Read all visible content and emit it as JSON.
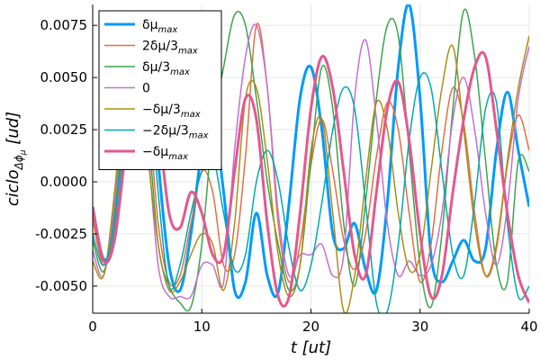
{
  "chart_data": {
    "type": "line",
    "xlabel": "t [ut]",
    "ylabel": "ciclo_Δϕμ [ud]",
    "xlim": [
      0,
      40
    ],
    "ylim": [
      -0.0063,
      0.0085
    ],
    "x_ticks": [
      0,
      10,
      20,
      30,
      40
    ],
    "x_tick_labels": [
      "0",
      "10",
      "20",
      "30",
      "40"
    ],
    "y_ticks": [
      -0.005,
      -0.0025,
      0.0,
      0.0025,
      0.005,
      0.0075
    ],
    "y_tick_labels": [
      "-0.0050",
      "-0.0025",
      "0.0000",
      "0.0025",
      "0.0050",
      "0.0075"
    ],
    "grid": true,
    "legend_position": "top-left",
    "series": [
      {
        "name": "δμmax",
        "color": "#009AFA",
        "width": 3,
        "x": [
          0,
          1,
          2,
          3,
          4,
          5,
          6,
          7,
          8,
          9,
          10,
          11,
          12,
          13,
          14,
          15,
          16,
          17,
          18,
          19,
          20,
          21,
          22,
          23,
          24,
          25,
          26,
          27,
          28,
          29,
          30,
          31,
          32,
          33,
          34,
          35,
          36,
          37,
          38,
          39,
          40
        ],
        "y": [
          -0.0012,
          -0.0037,
          -0.0025,
          0.002,
          0.0068,
          0.0072,
          0.001,
          -0.004,
          -0.0052,
          -0.0025,
          0.0015,
          0.0032,
          -0.0005,
          -0.0052,
          -0.0048,
          -0.0015,
          -0.0045,
          -0.0053,
          -0.001,
          0.004,
          0.0055,
          0.0025,
          -0.0025,
          -0.0032,
          -0.002,
          -0.0042,
          -0.0052,
          -0.001,
          0.0055,
          0.0085,
          0.004,
          -0.0035,
          -0.0048,
          -0.0038,
          -0.0028,
          -0.0038,
          -0.0032,
          0.0015,
          0.0043,
          0.0015,
          -0.0012
        ]
      },
      {
        "name": "2δμ/3max",
        "color": "#E26F46",
        "width": 1.5,
        "x": [
          0,
          1,
          2,
          3,
          4,
          5,
          6,
          7,
          8,
          9,
          10,
          11,
          12,
          13,
          14,
          15,
          16,
          17,
          18,
          19,
          20,
          21,
          22,
          23,
          24,
          25,
          26,
          27,
          28,
          29,
          30,
          31,
          32,
          33,
          34,
          35,
          36,
          37,
          38,
          39,
          40
        ],
        "y": [
          -0.0018,
          -0.004,
          -0.002,
          0.003,
          0.007,
          0.004,
          -0.002,
          -0.0048,
          -0.0045,
          -0.002,
          0.0005,
          -0.0005,
          -0.004,
          -0.0035,
          0.0012,
          0.0075,
          0.0045,
          -0.002,
          -0.0048,
          -0.003,
          0.0008,
          0.003,
          0.0005,
          -0.0028,
          -0.0042,
          -0.0025,
          0.0012,
          0.0038,
          0.0025,
          -0.0015,
          -0.0048,
          -0.003,
          0.0015,
          0.0045,
          0.0028,
          -0.0015,
          -0.0045,
          -0.0032,
          0.0008,
          0.0032,
          0.0015
        ]
      },
      {
        "name": "δμ/3max",
        "color": "#3DA44D",
        "width": 1.5,
        "x": [
          0,
          1,
          2,
          3,
          4,
          5,
          6,
          7,
          8,
          9,
          10,
          11,
          12,
          13,
          14,
          15,
          16,
          17,
          18,
          19,
          20,
          21,
          22,
          23,
          24,
          25,
          26,
          27,
          28,
          29,
          30,
          31,
          32,
          33,
          34,
          35,
          36,
          37,
          38,
          39,
          40
        ],
        "y": [
          -0.0028,
          -0.0043,
          -0.0015,
          0.004,
          0.0072,
          0.003,
          -0.003,
          -0.005,
          -0.0058,
          -0.006,
          -0.003,
          0.0025,
          0.0055,
          0.008,
          0.0075,
          0.004,
          0.0,
          -0.003,
          -0.0052,
          -0.004,
          0.001,
          0.0055,
          0.0035,
          -0.002,
          -0.005,
          -0.001,
          0.004,
          0.0075,
          0.007,
          0.0015,
          -0.004,
          -0.006,
          -0.0025,
          0.0035,
          0.0082,
          0.006,
          0.001,
          -0.004,
          -0.0048,
          0.001,
          0.0005
        ]
      },
      {
        "name": "0",
        "color": "#C271D2",
        "width": 1.5,
        "x": [
          0,
          1,
          2,
          3,
          4,
          5,
          6,
          7,
          8,
          9,
          10,
          11,
          12,
          13,
          14,
          15,
          16,
          17,
          18,
          19,
          20,
          21,
          22,
          23,
          24,
          25,
          26,
          27,
          28,
          29,
          30,
          31,
          32,
          33,
          34,
          35,
          36,
          37,
          38,
          39,
          40
        ],
        "y": [
          -0.0033,
          -0.0045,
          -0.001,
          0.0048,
          0.007,
          0.002,
          -0.004,
          -0.0055,
          -0.0055,
          -0.0055,
          -0.004,
          -0.004,
          -0.0048,
          0.0015,
          0.006,
          0.0075,
          0.0045,
          -0.0015,
          -0.0045,
          -0.0035,
          -0.0035,
          -0.003,
          -0.0045,
          -0.0035,
          0.004,
          0.0068,
          0.003,
          -0.002,
          -0.0045,
          -0.0038,
          -0.0045,
          -0.004,
          -0.0015,
          0.003,
          0.005,
          0.0025,
          -0.0015,
          -0.004,
          -0.0012,
          0.004,
          0.0065
        ]
      },
      {
        "name": "−δμ/3max",
        "color": "#AC8D18",
        "width": 1.5,
        "x": [
          0,
          1,
          2,
          3,
          4,
          5,
          6,
          7,
          8,
          9,
          10,
          11,
          12,
          13,
          14,
          15,
          16,
          17,
          18,
          19,
          20,
          21,
          22,
          23,
          24,
          25,
          26,
          27,
          28,
          29,
          30,
          31,
          32,
          33,
          34,
          35,
          36,
          37,
          38,
          39,
          40
        ],
        "y": [
          -0.0038,
          -0.0045,
          -0.0005,
          0.005,
          0.0068,
          0.0015,
          -0.003,
          -0.0052,
          -0.0048,
          -0.0035,
          -0.0025,
          -0.003,
          -0.0052,
          -0.002,
          0.004,
          0.0045,
          0.001,
          -0.0035,
          -0.0055,
          -0.004,
          0.0015,
          0.003,
          -0.0015,
          -0.0062,
          -0.0045,
          0.0,
          0.0038,
          0.0025,
          -0.0015,
          -0.0042,
          -0.0035,
          0.0005,
          0.0045,
          0.0065,
          0.0025,
          -0.002,
          -0.0045,
          -0.003,
          0.001,
          0.0045,
          0.007
        ]
      },
      {
        "name": "−2δμ/3max",
        "color": "#00A9AD",
        "width": 1.5,
        "x": [
          0,
          1,
          2,
          3,
          4,
          5,
          6,
          7,
          8,
          9,
          10,
          11,
          12,
          13,
          14,
          15,
          16,
          17,
          18,
          19,
          20,
          21,
          22,
          23,
          24,
          25,
          26,
          27,
          28,
          29,
          30,
          31,
          32,
          33,
          34,
          35,
          36,
          37,
          38,
          39,
          40
        ],
        "y": [
          -0.0025,
          -0.004,
          -0.0018,
          0.0035,
          0.0078,
          0.006,
          -0.0005,
          -0.005,
          -0.004,
          -0.0015,
          0.0005,
          0.0012,
          -0.0015,
          -0.0042,
          -0.0035,
          0.0,
          0.0015,
          0.0,
          -0.0032,
          -0.0052,
          -0.004,
          -0.001,
          0.0025,
          0.0045,
          0.0035,
          -0.001,
          -0.0058,
          -0.0062,
          -0.003,
          0.002,
          0.005,
          0.0045,
          0.0005,
          -0.0035,
          -0.0045,
          -0.001,
          0.0035,
          0.0038,
          -0.002,
          -0.0055,
          -0.005
        ]
      },
      {
        "name": "−δμmax",
        "color": "#E4588E",
        "width": 3,
        "x": [
          0,
          1,
          2,
          3,
          4,
          5,
          6,
          7,
          8,
          9,
          10,
          11,
          12,
          13,
          14,
          15,
          16,
          17,
          18,
          19,
          20,
          21,
          22,
          23,
          24,
          25,
          26,
          27,
          28,
          29,
          30,
          31,
          32,
          33,
          34,
          35,
          36,
          37,
          38,
          39,
          40
        ],
        "y": [
          -0.0012,
          -0.0038,
          -0.0028,
          0.0015,
          0.0062,
          0.0072,
          0.003,
          -0.0015,
          -0.0022,
          -0.0005,
          -0.0015,
          -0.0035,
          -0.0035,
          0.0005,
          0.004,
          0.003,
          -0.002,
          -0.0055,
          -0.0055,
          -0.0015,
          0.0035,
          0.006,
          0.0045,
          0.0005,
          -0.0035,
          -0.0045,
          -0.0005,
          0.0035,
          0.0048,
          0.002,
          -0.0025,
          -0.0055,
          -0.0045,
          -0.0005,
          0.003,
          0.0055,
          0.006,
          0.0025,
          -0.0015,
          -0.0045,
          -0.0058
        ]
      }
    ],
    "legend_labels": [
      {
        "base": "δμ",
        "sub": "max"
      },
      {
        "base": "2δμ/3",
        "sub": "max"
      },
      {
        "base": "δμ/3",
        "sub": "max"
      },
      {
        "base": "0",
        "sub": ""
      },
      {
        "base": "−δμ/3",
        "sub": "max"
      },
      {
        "base": "−2δμ/3",
        "sub": "max"
      },
      {
        "base": "−δμ",
        "sub": "max"
      }
    ],
    "ylabel_parts": {
      "base": "ciclo",
      "sub": "Δϕ",
      "subsub": "μ",
      "unit": " [ud]"
    },
    "xlabel_parts": {
      "text": "t [ut]"
    }
  }
}
